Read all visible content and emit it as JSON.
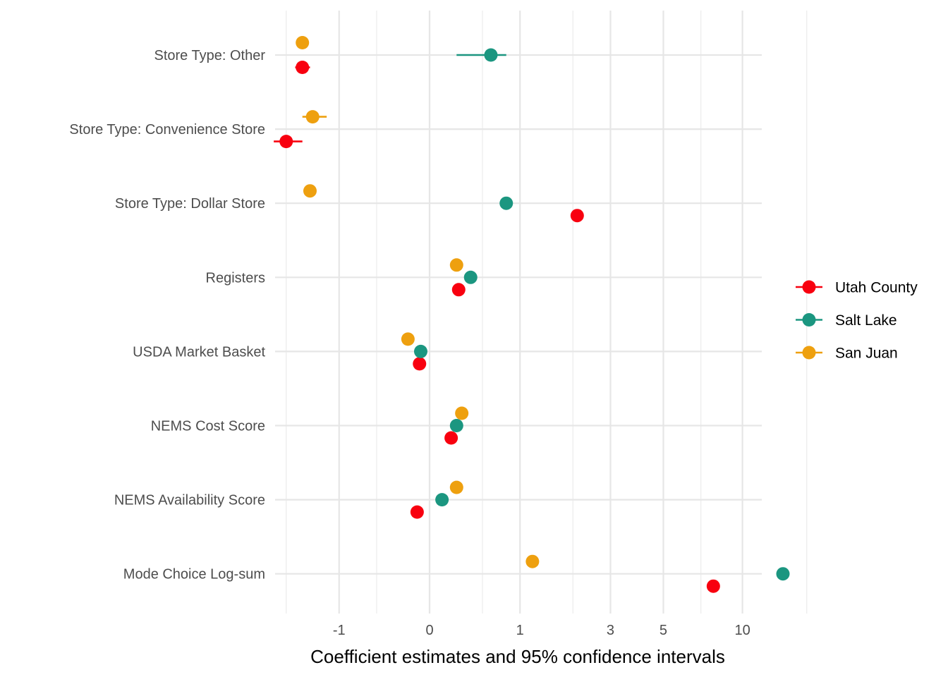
{
  "chart_data": {
    "type": "scatter",
    "title": "",
    "xlabel": "Coefficient estimates and 95% confidence intervals",
    "ylabel": "",
    "x_scale": "pseudo-log",
    "x_range": [
      -2.3,
      17
    ],
    "x_ticks": [
      {
        "value": -1,
        "label": "-1"
      },
      {
        "value": 0,
        "label": "0"
      },
      {
        "value": 1,
        "label": "1"
      },
      {
        "value": 3,
        "label": "3"
      },
      {
        "value": 5,
        "label": "5"
      },
      {
        "value": 10,
        "label": "10"
      }
    ],
    "x_minor_gridlines": [
      -2,
      -0.5,
      0.5,
      2,
      7,
      17
    ],
    "grid": true,
    "legend_position": "right",
    "categories": [
      "Store Type: Other",
      "Store Type: Convenience Store",
      "Store Type: Dollar Store",
      "Registers",
      "USDA Market Basket",
      "NEMS Cost Score",
      "NEMS Availability Score",
      "Mode Choice Log-sum"
    ],
    "series": [
      {
        "name": "Utah County",
        "color": "#f8000f",
        "points": [
          {
            "category": "Store Type: Other",
            "x": -1.65,
            "lo": -1.8,
            "hi": -1.5
          },
          {
            "category": "Store Type: Convenience Store",
            "x": -2.0,
            "lo": -2.3,
            "hi": -1.65
          },
          {
            "category": "Store Type: Dollar Store",
            "x": 2.1,
            "lo": 2.1,
            "hi": 2.1
          },
          {
            "category": "Registers",
            "x": 0.25,
            "lo": 0.25,
            "hi": 0.25
          },
          {
            "category": "USDA Market Basket",
            "x": -0.08,
            "lo": -0.08,
            "hi": -0.08
          },
          {
            "category": "NEMS Cost Score",
            "x": 0.18,
            "lo": 0.18,
            "hi": 0.18
          },
          {
            "category": "NEMS Availability Score",
            "x": -0.1,
            "lo": -0.1,
            "hi": -0.1
          },
          {
            "category": "Mode Choice Log-sum",
            "x": 7.8,
            "lo": 7.8,
            "hi": 7.8
          }
        ]
      },
      {
        "name": "Salt Lake",
        "color": "#1b9680",
        "points": [
          {
            "category": "Store Type: Other",
            "x": 0.6,
            "lo": 0.23,
            "hi": 0.8
          },
          {
            "category": "Store Type: Dollar Store",
            "x": 0.8,
            "lo": 0.8,
            "hi": 0.8
          },
          {
            "category": "Registers",
            "x": 0.37,
            "lo": 0.37,
            "hi": 0.37
          },
          {
            "category": "USDA Market Basket",
            "x": -0.07,
            "lo": -0.07,
            "hi": -0.07
          },
          {
            "category": "NEMS Cost Score",
            "x": 0.23,
            "lo": 0.23,
            "hi": 0.23
          },
          {
            "category": "NEMS Availability Score",
            "x": 0.1,
            "lo": 0.1,
            "hi": 0.1
          },
          {
            "category": "Mode Choice Log-sum",
            "x": 14.0,
            "lo": 14.0,
            "hi": 14.0
          }
        ]
      },
      {
        "name": "San Juan",
        "color": "#eea00f",
        "points": [
          {
            "category": "Store Type: Other",
            "x": -1.65,
            "lo": -1.65,
            "hi": -1.65
          },
          {
            "category": "Store Type: Convenience Store",
            "x": -1.45,
            "lo": -1.65,
            "hi": -1.2
          },
          {
            "category": "Store Type: Dollar Store",
            "x": -1.5,
            "lo": -1.5,
            "hi": -1.5
          },
          {
            "category": "Registers",
            "x": 0.23,
            "lo": 0.23,
            "hi": 0.23
          },
          {
            "category": "USDA Market Basket",
            "x": -0.18,
            "lo": -0.18,
            "hi": -0.18
          },
          {
            "category": "NEMS Cost Score",
            "x": 0.28,
            "lo": 0.28,
            "hi": 0.28
          },
          {
            "category": "NEMS Availability Score",
            "x": 0.23,
            "lo": 0.23,
            "hi": 0.23
          },
          {
            "category": "Mode Choice Log-sum",
            "x": 1.2,
            "lo": 1.2,
            "hi": 1.2
          }
        ]
      }
    ]
  }
}
